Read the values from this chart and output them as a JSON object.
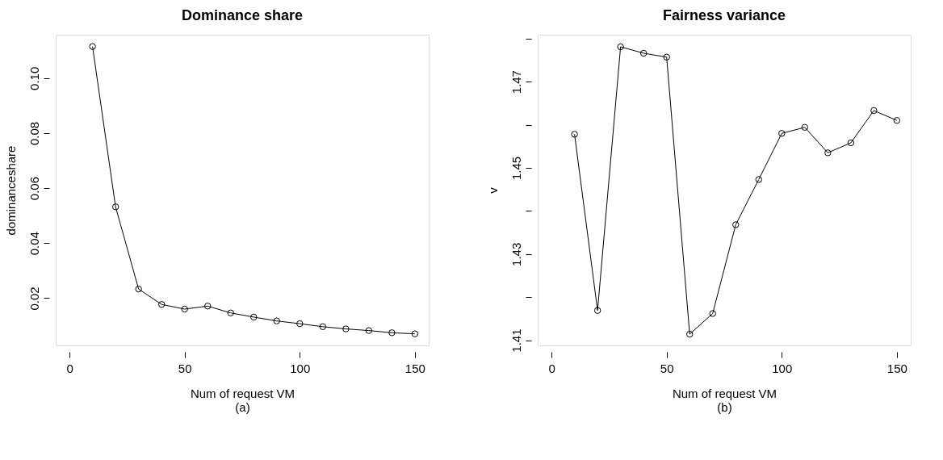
{
  "chart_data": [
    {
      "type": "line",
      "title": "Dominance share",
      "xlabel": "Num of request VM",
      "ylabel": "dominanceshare",
      "annotations": [
        "(a)"
      ],
      "x": [
        10,
        20,
        30,
        40,
        50,
        60,
        70,
        80,
        90,
        100,
        110,
        120,
        130,
        140,
        150
      ],
      "series": [
        {
          "color": "#000000",
          "values": [
            0.1115,
            0.0532,
            0.0233,
            0.0177,
            0.016,
            0.0171,
            0.0146,
            0.0131,
            0.0117,
            0.0107,
            0.0096,
            0.0088,
            0.0082,
            0.0074,
            0.007
          ]
        }
      ],
      "xlim": [
        -6,
        156
      ],
      "ylim": [
        0.0028,
        0.1158
      ],
      "xticks": [
        0,
        50,
        100,
        150
      ],
      "yticks": [
        0.02,
        0.04,
        0.06,
        0.08,
        {
          "value": 0.1,
          "label": "0.10"
        }
      ],
      "grid": false,
      "marker": "circle",
      "line_style": "solid"
    },
    {
      "type": "line",
      "title": "Fairness variance",
      "xlabel": "Num of request VM",
      "ylabel": "v",
      "annotations": [
        "(b)"
      ],
      "x": [
        10,
        20,
        30,
        40,
        50,
        60,
        70,
        80,
        90,
        100,
        110,
        120,
        130,
        140,
        150
      ],
      "series": [
        {
          "color": "#000000",
          "values": [
            1.4578,
            1.4169,
            1.4781,
            1.4766,
            1.4757,
            1.4114,
            1.4162,
            1.4368,
            1.4473,
            1.458,
            1.4594,
            1.4535,
            1.4558,
            1.4633,
            1.461
          ]
        }
      ],
      "xlim": [
        -6,
        156
      ],
      "ylim": [
        1.4088,
        1.4809
      ],
      "xticks": [
        0,
        50,
        100,
        150
      ],
      "yticks": [
        1.41,
        {
          "value": 1.42,
          "label": null
        },
        1.43,
        {
          "value": 1.44,
          "label": null
        },
        1.45,
        {
          "value": 1.46,
          "label": null
        },
        1.47,
        {
          "value": 1.48,
          "label": null
        }
      ],
      "grid": false,
      "marker": "circle",
      "line_style": "solid"
    }
  ]
}
